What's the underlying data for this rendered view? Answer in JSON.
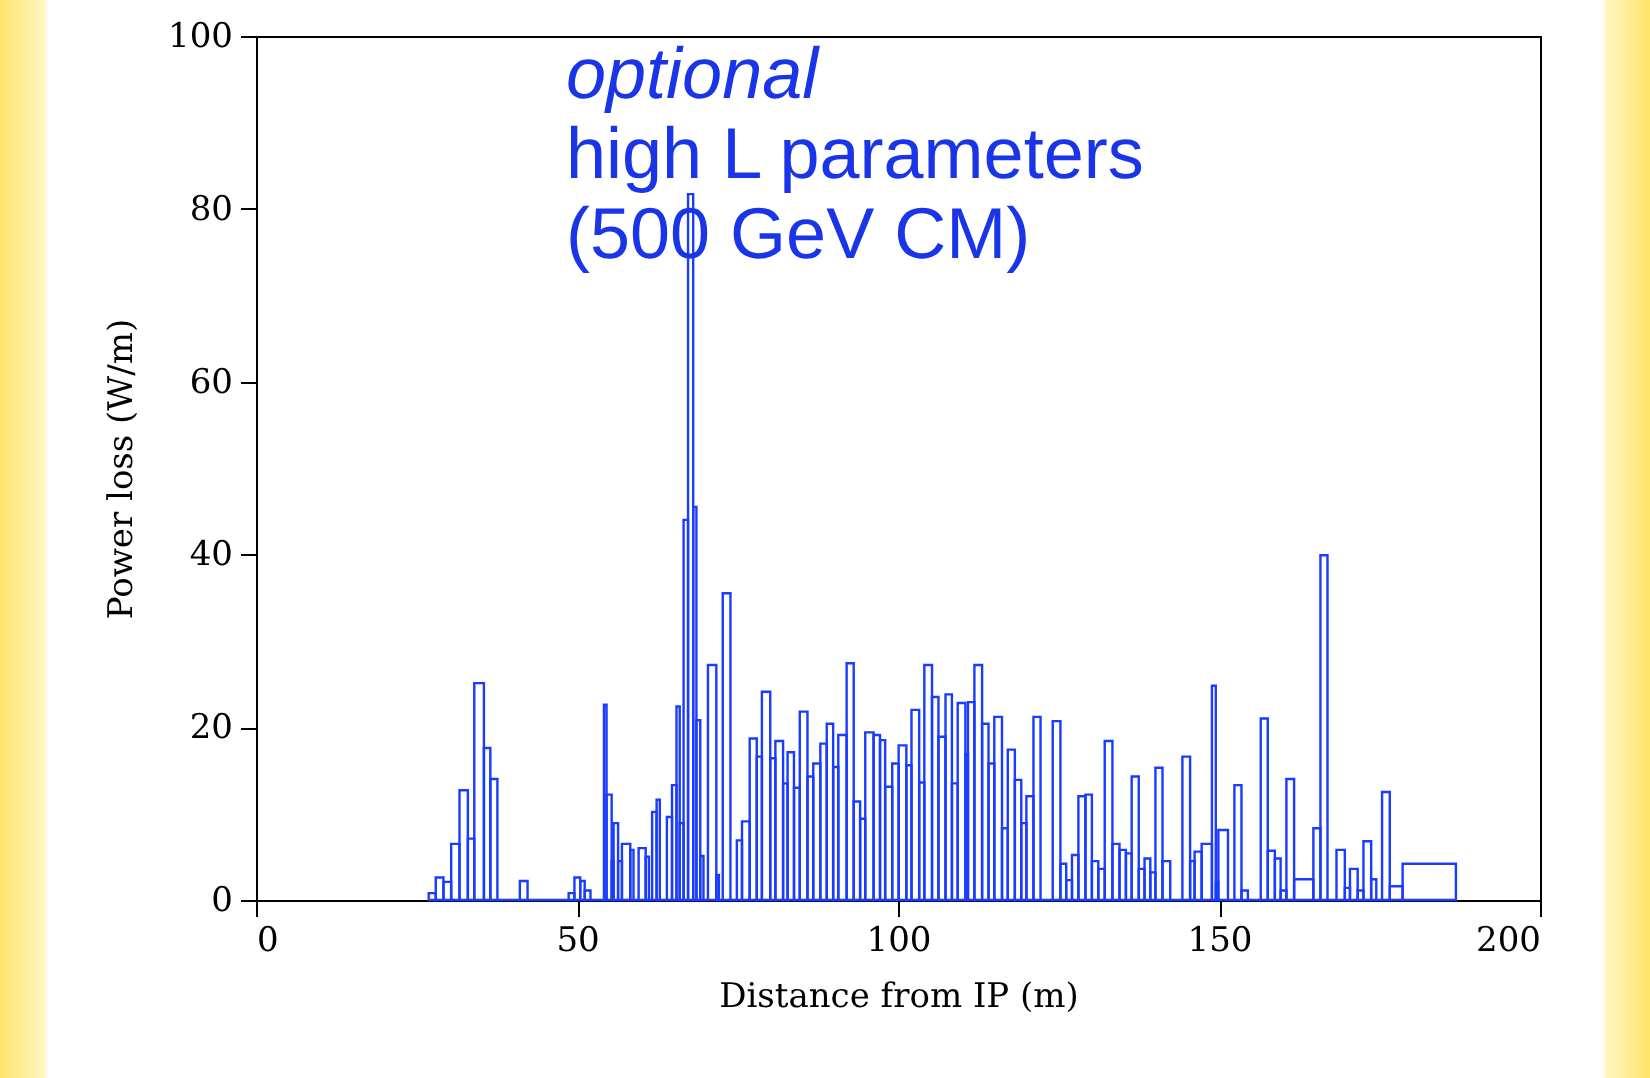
{
  "chart_data": {
    "type": "histogram",
    "xlabel": "Distance from IP (m)",
    "ylabel": "Power loss (W/m)",
    "annotations": [
      "optional",
      "high L parameters",
      "(500 GeV CM)"
    ],
    "color": "#1a3cff",
    "xlim": [
      0,
      200
    ],
    "xticks": [
      0,
      50,
      100,
      150,
      200
    ],
    "ylim": [
      0,
      100
    ],
    "yticks": [
      0,
      20,
      40,
      60,
      80,
      100
    ],
    "grid": false,
    "bins": [
      26.9,
      28.0,
      29.2,
      30.4,
      31.7,
      33.0,
      34.0,
      35.5,
      36.5,
      37.6,
      41.1,
      42.3,
      48.7,
      49.6,
      50.5,
      51.2,
      52.1,
      54.2,
      54.6,
      55.4,
      55.7,
      56.4,
      57.0,
      58.3,
      58.8,
      59.6,
      60.7,
      61.2,
      61.7,
      62.4,
      62.9,
      64.0,
      64.8,
      65.5,
      66.0,
      66.6,
      67.3,
      68.1,
      68.6,
      69.2,
      69.7,
      70.4,
      71.7,
      72.1,
      72.7,
      73.9,
      74.9,
      75.7,
      76.9,
      78.0,
      78.8,
      80.1,
      80.9,
      82.1,
      82.8,
      83.8,
      84.7,
      85.9,
      86.8,
      87.9,
      88.9,
      89.9,
      90.7,
      92.0,
      93.1,
      94.1,
      94.9,
      96.2,
      97.2,
      98.0,
      99.1,
      100.1,
      101.3,
      102.1,
      103.3,
      104.1,
      105.3,
      106.3,
      107.4,
      108.4,
      109.3,
      110.5,
      110.9,
      111.9,
      113.1,
      114.1,
      115.0,
      116.2,
      117.1,
      118.2,
      119.2,
      120.0,
      121.1,
      122.2,
      124.1,
      125.3,
      126.2,
      127.1,
      128.1,
      129.2,
      130.2,
      131.2,
      132.2,
      133.4,
      134.5,
      135.5,
      136.4,
      137.5,
      138.4,
      139.3,
      140.1,
      141.2,
      142.4,
      144.3,
      145.5,
      146.2,
      147.3,
      148.9,
      149.5,
      149.9,
      151.4,
      152.4,
      153.5,
      154.5,
      156.5,
      157.6,
      158.7,
      159.6,
      160.5,
      161.7,
      164.7,
      165.8,
      166.9,
      168.3,
      169.6,
      170.4,
      171.6,
      172.5,
      173.7,
      174.5,
      175.4,
      176.6,
      178.6,
      186.9
    ],
    "values": [
      0.8,
      2.6,
      2.1,
      6.5,
      12.7,
      7.1,
      25.1,
      17.6,
      14.0,
      0,
      2.2,
      0,
      0.8,
      2.6,
      2.2,
      1.1,
      0,
      22.6,
      12.2,
      4.5,
      8.9,
      4.5,
      6.5,
      5.8,
      0,
      6.0,
      5.0,
      0,
      10.2,
      11.6,
      0,
      9.6,
      13.3,
      22.4,
      8.9,
      44.0,
      81.7,
      45.5,
      20.8,
      5.1,
      0,
      27.2,
      2.9,
      0,
      35.5,
      0,
      6.9,
      9.1,
      18.7,
      16.6,
      24.1,
      16.4,
      18.4,
      13.5,
      17.1,
      13.0,
      21.8,
      14.3,
      15.8,
      18.1,
      20.4,
      15.4,
      19.1,
      27.4,
      11.4,
      9.4,
      19.4,
      19.1,
      18.5,
      13.1,
      15.8,
      17.9,
      15.6,
      22.0,
      13.6,
      27.2,
      23.5,
      18.9,
      23.8,
      13.5,
      22.8,
      16.9,
      22.9,
      27.2,
      20.4,
      15.8,
      21.2,
      8.3,
      17.4,
      13.9,
      8.9,
      12.0,
      21.2,
      0,
      20.7,
      4.2,
      2.3,
      5.2,
      12.0,
      12.2,
      4.5,
      3.6,
      18.4,
      6.5,
      5.8,
      5.4,
      14.3,
      3.6,
      4.8,
      3.2,
      15.3,
      4.5,
      0,
      16.6,
      4.5,
      5.6,
      6.5,
      24.8,
      2.1,
      8.1,
      0,
      13.3,
      1.1,
      0,
      21.0,
      5.7,
      4.8,
      1.1,
      14.0,
      2.4,
      8.3,
      39.9,
      0,
      5.8,
      1.4,
      3.6,
      1.1,
      6.8,
      2.4,
      0,
      12.5,
      1.6,
      4.2
    ]
  }
}
